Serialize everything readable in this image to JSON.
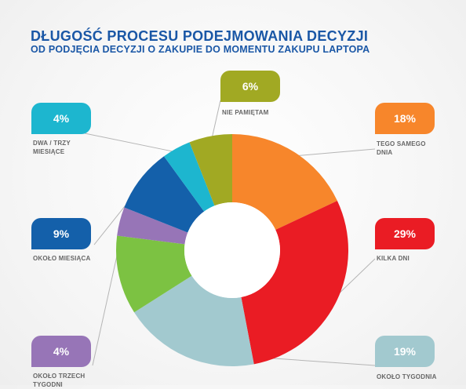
{
  "header": {
    "title": "DŁUGOŚĆ PROCESU PODEJMOWANIA DECYZJI",
    "subtitle": "OD PODJĘCIA DECYZJI O ZAKUPIE DO MOMENTU ZAKUPU LAPTOPA"
  },
  "chart_data": {
    "type": "pie",
    "title": "DŁUGOŚĆ PROCESU PODEJMOWANIA DECYZJI",
    "subtitle": "OD PODJĘCIA DECYZJI O ZAKUPIE DO MOMENTU ZAKUPU LAPTOPA",
    "donut": true,
    "slices": [
      {
        "label": "TEGO SAMEGO DNIA",
        "value": 18,
        "display": "18%",
        "color": "#f7862b"
      },
      {
        "label": "KILKA DNI",
        "value": 29,
        "display": "29%",
        "color": "#ea1c24"
      },
      {
        "label": "OKOŁO TYGODNIA",
        "value": 19,
        "display": "19%",
        "color": "#a2c9cf"
      },
      {
        "label": "",
        "value": 11,
        "display": "",
        "color": "#7cc242"
      },
      {
        "label": "OKOŁO TRZECH TYGODNI",
        "value": 4,
        "display": "4%",
        "color": "#9775b7"
      },
      {
        "label": "OKOŁO MIESIĄCA",
        "value": 9,
        "display": "9%",
        "color": "#1460aa"
      },
      {
        "label": "DWA / TRZY MIESIĄCE",
        "value": 4,
        "display": "4%",
        "color": "#1db6cf"
      },
      {
        "label": "NIE PAMIĘTAM",
        "value": 6,
        "display": "6%",
        "color": "#a1a923"
      }
    ]
  }
}
